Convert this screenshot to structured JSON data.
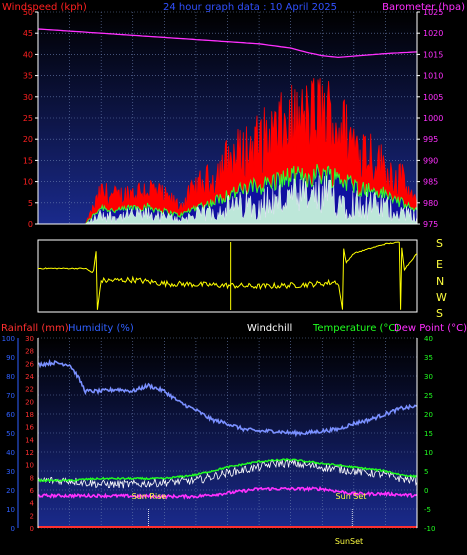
{
  "colors": {
    "wind_label": "#ff2020",
    "title": "#3050ff",
    "baro": "#ff30ff",
    "rain": "#ff3030",
    "humidity": "#3060ff",
    "windchill": "#ffffff",
    "temperature": "#20ff20",
    "dewpoint": "#ff30ff",
    "sun": "#ffff40",
    "hour_ticks": "#000000"
  },
  "chart_data": [
    {
      "type": "line",
      "id": "wind-baro",
      "title": "24 hour graph data : 10 April 2025",
      "left_axis": {
        "label": "Windspeed (kph)",
        "ticks": [
          "0",
          "5",
          "10",
          "15",
          "20",
          "25",
          "30",
          "35",
          "40",
          "45",
          "50"
        ],
        "range": [
          0,
          50
        ]
      },
      "right_axis": {
        "label": "Barometer (hpa)",
        "ticks": [
          "975",
          "980",
          "985",
          "990",
          "995",
          "1000",
          "1005",
          "1010",
          "1015",
          "1020",
          "1025"
        ],
        "range": [
          975,
          1025
        ]
      },
      "x_ticks": [
        "02",
        "04",
        "06",
        "08",
        "10",
        "12",
        "14",
        "16",
        "18",
        "20",
        "22",
        "00"
      ],
      "series": [
        {
          "name": "Barometer (hpa)",
          "axis": "right",
          "x": [
            0,
            2,
            4,
            6,
            8,
            10,
            12,
            14,
            16,
            17,
            18,
            19,
            20,
            22,
            24
          ],
          "y": [
            1021,
            1020.5,
            1020,
            1019.5,
            1019,
            1018.5,
            1018,
            1017.5,
            1016.5,
            1015.5,
            1014.7,
            1014.3,
            1014.6,
            1015.2,
            1015.6
          ]
        },
        {
          "name": "gust",
          "axis": "left",
          "x": [
            0,
            3,
            4,
            5,
            6,
            7,
            8,
            9,
            10,
            11,
            12,
            13,
            14,
            15,
            16,
            17,
            18,
            19,
            20,
            21,
            22,
            23,
            24
          ],
          "y": [
            0,
            0,
            7,
            6,
            7,
            8,
            6,
            4,
            8,
            10,
            14,
            16,
            18,
            20,
            22,
            23,
            25,
            22,
            18,
            16,
            12,
            10,
            4
          ]
        },
        {
          "name": "average",
          "axis": "left",
          "x": [
            0,
            3,
            4,
            5,
            6,
            7,
            8,
            9,
            10,
            11,
            12,
            13,
            14,
            15,
            16,
            17,
            18,
            19,
            20,
            21,
            22,
            23,
            24
          ],
          "y": [
            0,
            0,
            4,
            3,
            4,
            4,
            3,
            2,
            4,
            5,
            7,
            8,
            9,
            10,
            11,
            11,
            12,
            11,
            9,
            8,
            7,
            5,
            3
          ]
        }
      ]
    },
    {
      "type": "line",
      "id": "wind-direction",
      "y_ticks": [
        "S",
        "E",
        "N",
        "W",
        "S"
      ],
      "series": [
        {
          "name": "direction",
          "x": [
            0,
            3,
            3.5,
            4,
            6,
            8,
            10,
            12,
            14,
            16,
            18,
            19,
            19.5,
            20,
            22,
            23,
            23.2,
            24
          ],
          "y": [
            40,
            40,
            15,
            335,
            340,
            320,
            315,
            310,
            305,
            310,
            320,
            330,
            70,
            120,
            170,
            180,
            35,
            120
          ]
        }
      ]
    },
    {
      "type": "line",
      "id": "temp-hum-rain",
      "legend": [
        "Rainfall (mm)",
        "Humidity (%)",
        "Windchill",
        "Temperature (°C)",
        "Dew Point (°C)"
      ],
      "humidity_axis": {
        "ticks": [
          "0",
          "10",
          "20",
          "30",
          "40",
          "50",
          "60",
          "70",
          "80",
          "90",
          "100"
        ],
        "range": [
          0,
          100
        ]
      },
      "rain_axis": {
        "ticks": [
          "0",
          "2",
          "4",
          "6",
          "8",
          "10",
          "12",
          "14",
          "16",
          "18",
          "20",
          "22",
          "24",
          "26",
          "28",
          "30"
        ],
        "range": [
          0,
          30
        ]
      },
      "temp_axis": {
        "ticks": [
          "-10",
          "-5",
          "0",
          "5",
          "10",
          "15",
          "20",
          "25",
          "30",
          "35",
          "40"
        ],
        "range": [
          -10,
          40
        ]
      },
      "x_ticks": [
        "02",
        "04",
        "06",
        "08",
        "10",
        "12",
        "14",
        "16",
        "18",
        "20",
        "22",
        "00"
      ],
      "annotations": [
        "Sun Rise",
        "Sun Set",
        "SunSet"
      ],
      "series": [
        {
          "name": "Humidity (%)",
          "axis": "humidity",
          "x": [
            0,
            1,
            2,
            2.5,
            3,
            4,
            5,
            6,
            7,
            8,
            9,
            10,
            11,
            12,
            13,
            14,
            15,
            16,
            17,
            18,
            19,
            20,
            21,
            22,
            23,
            24
          ],
          "y": [
            86,
            87,
            86,
            80,
            72,
            72,
            73,
            72,
            75,
            72,
            66,
            62,
            57,
            55,
            52,
            51,
            51,
            50,
            50,
            51,
            52,
            55,
            57,
            60,
            63,
            64
          ]
        },
        {
          "name": "Temperature (°C)",
          "axis": "temp",
          "x": [
            0,
            2,
            3,
            4,
            6,
            8,
            10,
            12,
            14,
            15,
            16,
            18,
            20,
            22,
            23,
            24
          ],
          "y": [
            2.5,
            2.5,
            2.8,
            3,
            3,
            3,
            4,
            6,
            7.5,
            7.8,
            8,
            7,
            6,
            5,
            4,
            3.5
          ]
        },
        {
          "name": "Windchill",
          "axis": "temp",
          "x": [
            0,
            2,
            3,
            4,
            6,
            8,
            10,
            12,
            14,
            15,
            16,
            18,
            20,
            22,
            23,
            24
          ],
          "y": [
            2.5,
            2.5,
            2,
            1.5,
            1.5,
            2,
            2.5,
            4.5,
            6,
            7,
            7,
            6,
            5,
            4,
            3,
            2.5
          ]
        },
        {
          "name": "Dew Point (°C)",
          "axis": "temp",
          "x": [
            0,
            2,
            4,
            6,
            8,
            10,
            12,
            14,
            16,
            18,
            20,
            22,
            24
          ],
          "y": [
            -1.5,
            -1.5,
            -1.5,
            -1.6,
            -1.7,
            -1.7,
            -0.8,
            0.3,
            0.3,
            0.3,
            -1,
            -1,
            -1.5
          ]
        },
        {
          "name": "Rainfall (mm)",
          "axis": "rain",
          "x": [
            0,
            24
          ],
          "y": [
            0,
            0
          ]
        }
      ]
    }
  ]
}
